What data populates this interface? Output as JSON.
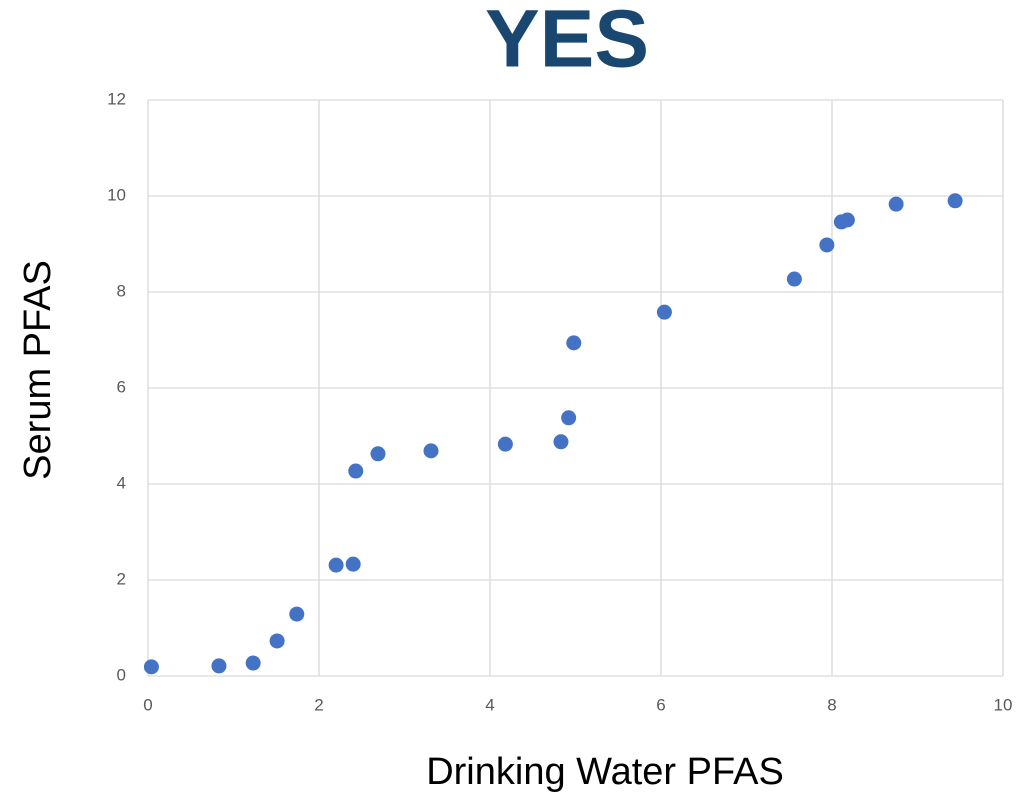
{
  "chart_data": {
    "type": "scatter",
    "title": "YES",
    "x_label": "Drinking Water PFAS",
    "y_label": "Serum PFAS",
    "x": [
      0.04,
      0.83,
      1.23,
      1.51,
      1.74,
      2.2,
      2.4,
      2.43,
      2.69,
      3.31,
      4.18,
      4.83,
      4.92,
      4.98,
      6.04,
      7.56,
      7.94,
      8.11,
      8.18,
      8.75,
      9.44
    ],
    "values": [
      0.19,
      0.21,
      0.27,
      0.73,
      1.29,
      2.31,
      2.33,
      4.27,
      4.63,
      4.69,
      4.83,
      4.88,
      5.38,
      6.94,
      7.58,
      8.27,
      8.98,
      9.46,
      9.5,
      9.83,
      9.9
    ],
    "color": "#4472c4",
    "xlim": [
      0,
      10
    ],
    "xticks": [
      0,
      2,
      4,
      6,
      8,
      10
    ],
    "ylim": [
      0,
      12
    ],
    "yticks": [
      0,
      2,
      4,
      6,
      8,
      10,
      12
    ],
    "grid": true
  }
}
